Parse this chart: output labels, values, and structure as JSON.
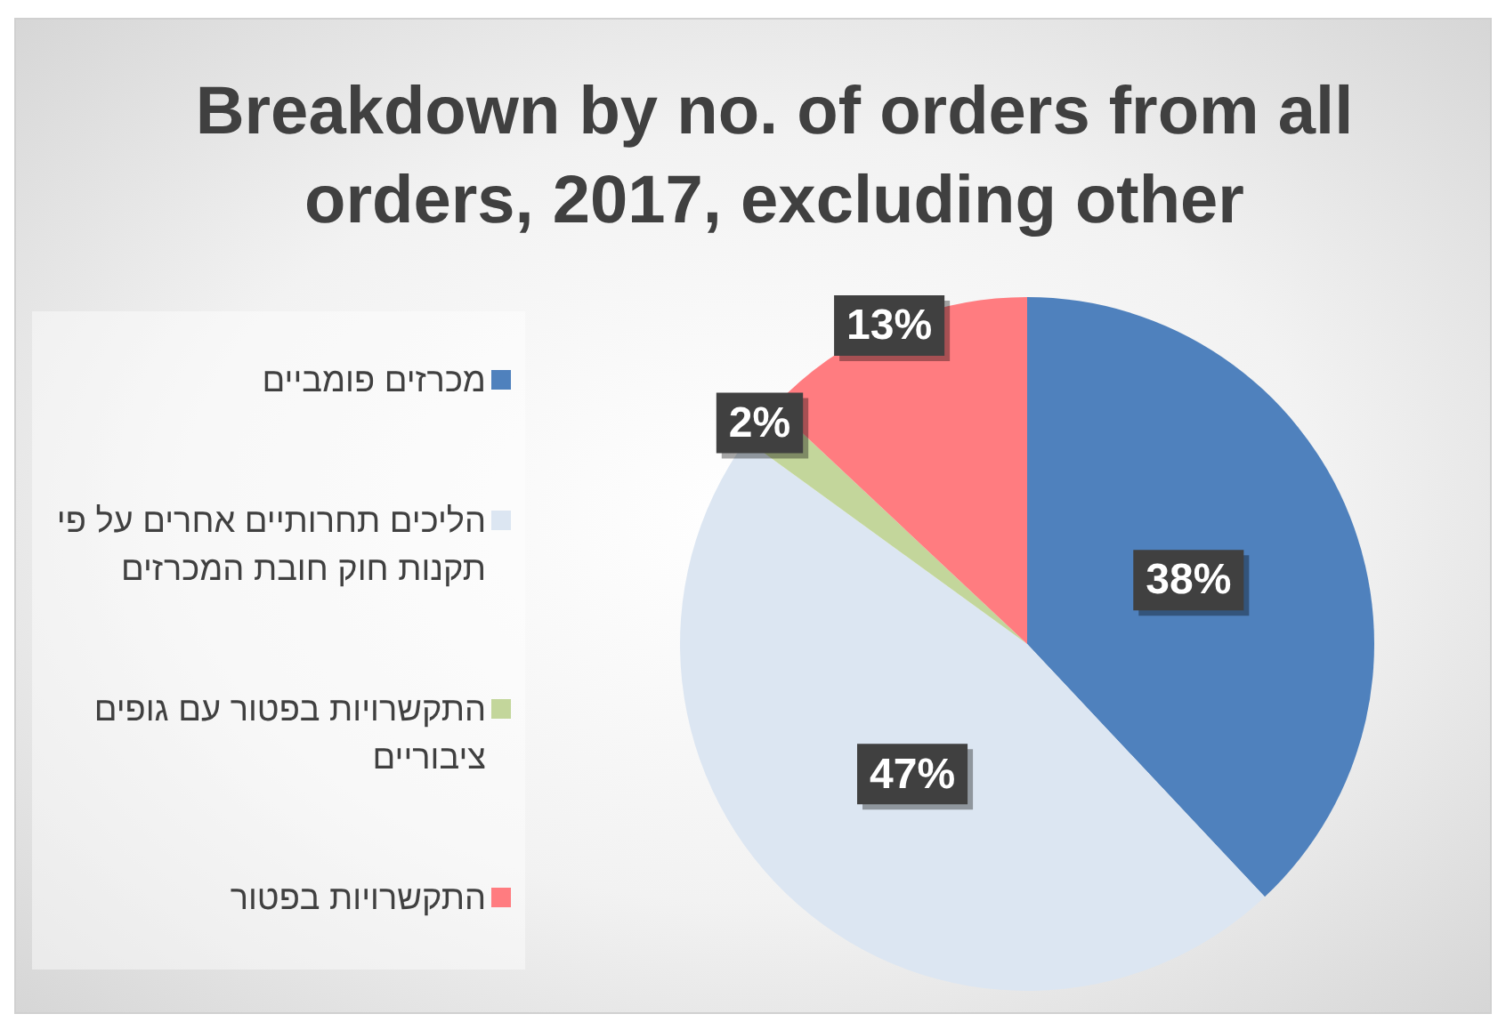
{
  "chart_data": {
    "type": "pie",
    "title": "Breakdown by no. of orders from all orders, 2017, excluding other",
    "categories": [
      "מכרזים פומביים",
      "הליכים תחרותיים אחרים על פי תקנות חוק חובת המכרזים",
      "התקשרויות בפטור עם גופים ציבוריים",
      "התקשרויות בפטור"
    ],
    "values": [
      38,
      47,
      2,
      13
    ],
    "colors": [
      "#4f81bd",
      "#dce6f2",
      "#c3d69b",
      "#ff7c80"
    ],
    "value_labels": [
      "38%",
      "47%",
      "2%",
      "13%"
    ],
    "legend": "left"
  }
}
